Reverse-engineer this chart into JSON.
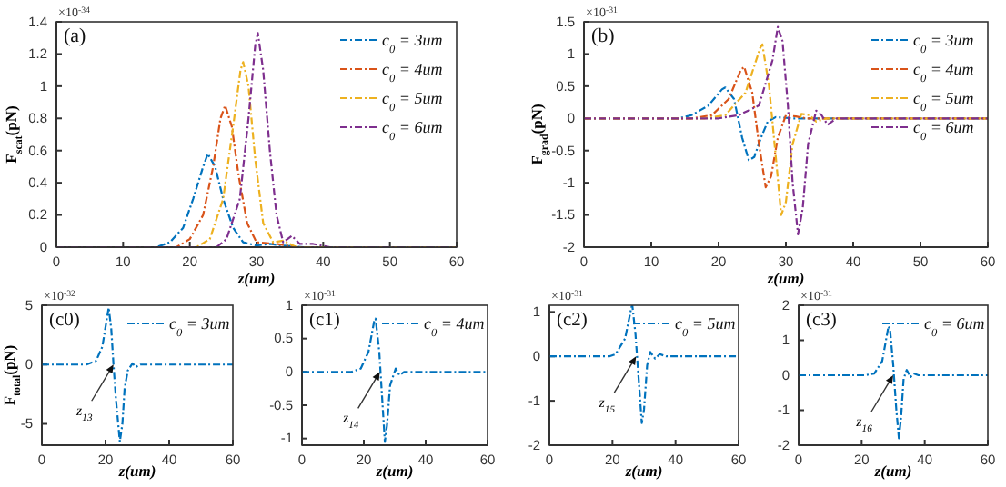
{
  "chart_data": [
    {
      "type": "line",
      "title": "(a)",
      "xlabel": "z(um)",
      "ylabel": "F$_{scat}$(pN)",
      "xlim": [
        0,
        60
      ],
      "xticks": [
        0,
        10,
        20,
        30,
        40,
        50,
        60
      ],
      "ylim": [
        0,
        1.4
      ],
      "yticks": [
        0,
        0.2,
        0.4,
        0.6,
        0.8,
        1,
        1.2,
        1.4
      ],
      "legend": "top right",
      "line_style": "dashed",
      "annotations": [
        "×10$^{-34}$"
      ],
      "series": [
        {
          "name": "c$_{0}$ = 3um",
          "color": "#0072bd",
          "x": [
            0,
            15,
            17,
            19,
            20.5,
            22,
            22.7,
            23.8,
            25,
            26.5,
            28,
            30,
            32,
            34,
            37,
            60
          ],
          "values": [
            0,
            0,
            0.03,
            0.12,
            0.3,
            0.5,
            0.58,
            0.5,
            0.3,
            0.12,
            0.03,
            0.01,
            0.02,
            0.01,
            0,
            0
          ]
        },
        {
          "name": "c$_{0}$ = 4um",
          "color": "#d95319",
          "x": [
            0,
            18,
            20,
            22,
            23.5,
            24.6,
            25.3,
            26.3,
            27.3,
            28.6,
            30,
            33,
            36,
            60
          ],
          "values": [
            0,
            0,
            0.05,
            0.2,
            0.5,
            0.8,
            0.88,
            0.75,
            0.45,
            0.15,
            0.03,
            0.02,
            0,
            0
          ]
        },
        {
          "name": "c$_{0}$ = 5um",
          "color": "#edb120",
          "x": [
            0,
            21,
            23,
            25,
            26.5,
            27.6,
            28,
            28.8,
            29.8,
            31,
            32.5,
            34,
            36,
            60
          ],
          "values": [
            0,
            0,
            0.05,
            0.3,
            0.75,
            1.1,
            1.15,
            1,
            0.55,
            0.15,
            0.03,
            0.04,
            0,
            0
          ]
        },
        {
          "name": "c$_{0}$ = 6um",
          "color": "#7e2f8e",
          "x": [
            0,
            24,
            25.5,
            27.5,
            28.8,
            29.8,
            30.2,
            31,
            32,
            33,
            34,
            35.3,
            36.5,
            38.5,
            41,
            60
          ],
          "values": [
            0,
            0,
            0.05,
            0.3,
            0.8,
            1.25,
            1.33,
            1.1,
            0.6,
            0.2,
            0.03,
            0.07,
            0.02,
            0.02,
            0,
            0
          ]
        }
      ]
    },
    {
      "type": "line",
      "title": "(b)",
      "xlabel": "z(um)",
      "ylabel": "F$_{grad}$(pN)",
      "xlim": [
        0,
        60
      ],
      "xticks": [
        0,
        10,
        20,
        30,
        40,
        50,
        60
      ],
      "ylim": [
        -2,
        1.5
      ],
      "yticks": [
        -2,
        -1.5,
        -1,
        -0.5,
        0,
        0.5,
        1,
        1.5
      ],
      "legend": "top right",
      "line_style": "dashed",
      "annotations": [
        "×10$^{-31}$"
      ],
      "series": [
        {
          "name": "c$_{0}$ = 3um",
          "color": "#0072bd",
          "x": [
            0,
            14,
            16,
            18.5,
            20.5,
            21,
            22.3,
            23.5,
            24.5,
            25.3,
            26.3,
            27.3,
            28.5,
            31,
            60
          ],
          "values": [
            0,
            0,
            0.05,
            0.2,
            0.45,
            0.48,
            0.3,
            -0.3,
            -0.65,
            -0.6,
            -0.3,
            -0.05,
            0.02,
            0,
            0
          ]
        },
        {
          "name": "c$_{0}$ = 4um",
          "color": "#d95319",
          "x": [
            0,
            16,
            19,
            21.5,
            23.3,
            23.8,
            25,
            26,
            27,
            27.8,
            28.8,
            30,
            31.5,
            33,
            60
          ],
          "values": [
            0,
            0,
            0.05,
            0.3,
            0.75,
            0.8,
            0.4,
            -0.4,
            -1.07,
            -0.9,
            -0.3,
            0.05,
            0.03,
            0,
            0
          ]
        },
        {
          "name": "c$_{0}$ = 5um",
          "color": "#edb120",
          "x": [
            0,
            18,
            21,
            24,
            26.2,
            26.5,
            27.5,
            28.5,
            29.3,
            30,
            31,
            32.3,
            33.5,
            34.5,
            36,
            60
          ],
          "values": [
            0,
            0,
            0.05,
            0.4,
            1.1,
            1.15,
            0.5,
            -0.6,
            -1.5,
            -1.3,
            -0.4,
            0.07,
            0.05,
            -0.05,
            0,
            0
          ]
        },
        {
          "name": "c$_{0}$ = 6um",
          "color": "#7e2f8e",
          "x": [
            0,
            20,
            23,
            26,
            28,
            28.8,
            29.5,
            30.3,
            31,
            31.8,
            32.5,
            33.3,
            34.5,
            35.3,
            36.2,
            37.5,
            60
          ],
          "values": [
            0,
            0,
            0.05,
            0.2,
            0.9,
            1.42,
            1.2,
            0.2,
            -1,
            -1.8,
            -1.4,
            -0.4,
            0.12,
            0.05,
            -0.1,
            0,
            0
          ]
        }
      ]
    },
    {
      "type": "line",
      "title": "(c0)",
      "xlabel": "z(um)",
      "ylabel": "F$_{total}$(pN)",
      "xlim": [
        0,
        60
      ],
      "xticks": [
        0,
        20,
        40,
        60
      ],
      "ylim": [
        -6.8,
        5
      ],
      "yticks": [
        -5,
        0,
        5
      ],
      "legend": "top right",
      "line_style": "dashed",
      "annotations": [
        "×10$^{-32}$",
        {
          "text": "z$_{13}$",
          "x": 22.5,
          "y": 0
        }
      ],
      "series": [
        {
          "name": "c$_{0}$ = 3um",
          "color": "#0072bd",
          "x": [
            0,
            14,
            17,
            19,
            20.5,
            21,
            21.8,
            22.5,
            23.3,
            24.5,
            25.3,
            26,
            27,
            28.5,
            29.5,
            31,
            60
          ],
          "values": [
            0,
            0,
            0.3,
            1.5,
            4,
            4.8,
            3,
            0,
            -3,
            -6.5,
            -5,
            -2,
            -0.5,
            0.1,
            -0.2,
            0,
            0
          ]
        }
      ]
    },
    {
      "type": "line",
      "title": "(c1)",
      "xlabel": "z(um)",
      "xlim": [
        0,
        60
      ],
      "xticks": [
        0,
        20,
        40,
        60
      ],
      "ylim": [
        -1.1,
        1
      ],
      "yticks": [
        -1,
        -0.5,
        0,
        0.5,
        1
      ],
      "legend": "top right",
      "line_style": "dashed",
      "annotations": [
        "×10$^{-31}$",
        {
          "text": "z$_{14}$",
          "x": 25.2,
          "y": 0
        }
      ],
      "series": [
        {
          "name": "c$_{0}$ = 4um",
          "color": "#0072bd",
          "x": [
            0,
            16,
            19,
            21.5,
            23.3,
            23.8,
            25,
            25.8,
            26.8,
            27.5,
            28.5,
            30.3,
            31.5,
            33,
            60
          ],
          "values": [
            0,
            0,
            0.05,
            0.3,
            0.75,
            0.8,
            0.3,
            -0.3,
            -1.05,
            -0.8,
            -0.2,
            0.05,
            -0.05,
            0,
            0
          ]
        }
      ]
    },
    {
      "type": "line",
      "title": "(c2)",
      "xlabel": "z(um)",
      "xlim": [
        0,
        60
      ],
      "xticks": [
        0,
        20,
        40,
        60
      ],
      "ylim": [
        -2,
        1.15
      ],
      "yticks": [
        -2,
        -1,
        0,
        1
      ],
      "legend": "top right",
      "line_style": "dashed",
      "annotations": [
        "×10$^{-31}$",
        {
          "text": "z$_{15}$",
          "x": 27.5,
          "y": 0
        }
      ],
      "series": [
        {
          "name": "c$_{0}$ = 5um",
          "color": "#0072bd",
          "x": [
            0,
            19,
            21,
            24,
            26,
            26.3,
            27.3,
            28.3,
            29.3,
            30,
            31,
            32,
            33.5,
            35,
            37,
            60
          ],
          "values": [
            0,
            0,
            0.05,
            0.4,
            1.1,
            1.15,
            0.5,
            -0.5,
            -1.5,
            -1.2,
            -0.2,
            0.1,
            -0.05,
            0.05,
            0,
            0
          ]
        }
      ]
    },
    {
      "type": "line",
      "title": "(c3)",
      "xlabel": "z(um)",
      "xlim": [
        0,
        60
      ],
      "xticks": [
        0,
        20,
        40,
        60
      ],
      "ylim": [
        -2,
        2
      ],
      "yticks": [
        -2,
        -1,
        0,
        1,
        2
      ],
      "legend": "top right",
      "line_style": "dashed",
      "annotations": [
        "×10$^{-31}$",
        {
          "text": "z$_{16}$",
          "x": 30,
          "y": 0
        }
      ],
      "series": [
        {
          "name": "c$_{0}$ = 6um",
          "color": "#0072bd",
          "x": [
            0,
            21,
            24,
            26.5,
            28.5,
            29,
            30,
            31,
            31.8,
            32.5,
            33.3,
            34.3,
            35.5,
            36.5,
            38,
            60
          ],
          "values": [
            0,
            0,
            0.05,
            0.4,
            1.4,
            1.3,
            0.3,
            -1,
            -1.8,
            -1.2,
            -0.1,
            0.15,
            -0.05,
            0.05,
            0,
            0
          ]
        }
      ]
    }
  ]
}
